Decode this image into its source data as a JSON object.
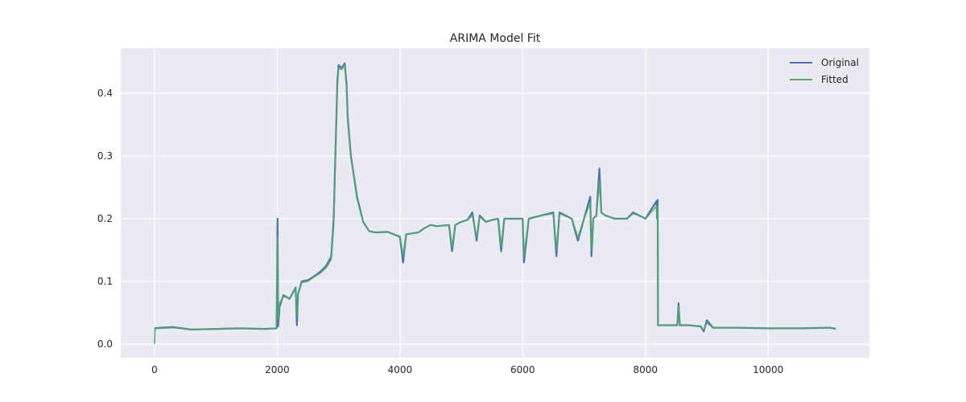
{
  "chart_data": {
    "type": "line",
    "title": "ARIMA Model Fit",
    "xlabel": "",
    "ylabel": "",
    "xlim": [
      -550,
      11650
    ],
    "ylim": [
      -0.022,
      0.472
    ],
    "x_ticks": [
      0,
      2000,
      4000,
      6000,
      8000,
      10000
    ],
    "x_tick_labels": [
      "0",
      "2000",
      "4000",
      "6000",
      "8000",
      "10000"
    ],
    "y_ticks": [
      0.0,
      0.1,
      0.2,
      0.3,
      0.4
    ],
    "y_tick_labels": [
      "0.0",
      "0.1",
      "0.2",
      "0.3",
      "0.4"
    ],
    "grid": true,
    "legend_position": "top-right",
    "series": [
      {
        "name": "Original",
        "color": "#4c72b0",
        "x": [
          0,
          100,
          300,
          600,
          1000,
          1400,
          1800,
          1990,
          2000,
          2005,
          2015,
          2040,
          2100,
          2200,
          2300,
          2320,
          2340,
          2400,
          2500,
          2600,
          2700,
          2800,
          2880,
          2920,
          2950,
          2980,
          3000,
          3050,
          3100,
          3130,
          3150,
          3200,
          3300,
          3400,
          3500,
          3600,
          3800,
          3900,
          4000,
          4050,
          4100,
          4300,
          4400,
          4500,
          4600,
          4800,
          4850,
          4900,
          5000,
          5100,
          5180,
          5250,
          5300,
          5400,
          5500,
          5600,
          5650,
          5700,
          5900,
          6000,
          6020,
          6100,
          6300,
          6500,
          6550,
          6600,
          6800,
          6900,
          7000,
          7100,
          7120,
          7150,
          7200,
          7250,
          7280,
          7350,
          7500,
          7700,
          7800,
          7900,
          8000,
          8180,
          8190,
          8200,
          8205,
          8220,
          8400,
          8520,
          8540,
          8560,
          8700,
          8900,
          8950,
          9000,
          9100,
          9500,
          10000,
          10500,
          11000,
          11100
        ],
        "y": [
          0.025,
          0.026,
          0.027,
          0.023,
          0.024,
          0.025,
          0.024,
          0.025,
          0.135,
          0.2,
          0.028,
          0.06,
          0.078,
          0.072,
          0.09,
          0.03,
          0.08,
          0.1,
          0.102,
          0.108,
          0.115,
          0.125,
          0.14,
          0.2,
          0.31,
          0.42,
          0.445,
          0.44,
          0.448,
          0.415,
          0.36,
          0.3,
          0.235,
          0.195,
          0.18,
          0.178,
          0.179,
          0.175,
          0.171,
          0.13,
          0.175,
          0.178,
          0.185,
          0.19,
          0.188,
          0.19,
          0.148,
          0.19,
          0.195,
          0.198,
          0.21,
          0.165,
          0.205,
          0.195,
          0.198,
          0.2,
          0.148,
          0.2,
          0.2,
          0.2,
          0.13,
          0.2,
          0.205,
          0.21,
          0.14,
          0.21,
          0.2,
          0.165,
          0.2,
          0.235,
          0.14,
          0.2,
          0.205,
          0.28,
          0.21,
          0.205,
          0.2,
          0.2,
          0.21,
          0.205,
          0.2,
          0.228,
          0.2,
          0.23,
          0.03,
          0.03,
          0.03,
          0.03,
          0.065,
          0.03,
          0.03,
          0.028,
          0.02,
          0.038,
          0.026,
          0.026,
          0.025,
          0.025,
          0.026,
          0.024
        ]
      },
      {
        "name": "Fitted",
        "color": "#55a868",
        "x": [
          0,
          10,
          100,
          300,
          600,
          1000,
          1400,
          1800,
          1990,
          2000,
          2005,
          2015,
          2040,
          2100,
          2200,
          2300,
          2320,
          2340,
          2400,
          2500,
          2600,
          2700,
          2800,
          2880,
          2920,
          2950,
          2980,
          3000,
          3050,
          3100,
          3130,
          3150,
          3200,
          3300,
          3400,
          3500,
          3600,
          3800,
          3900,
          4000,
          4050,
          4100,
          4300,
          4400,
          4500,
          4600,
          4800,
          4850,
          4900,
          5000,
          5100,
          5180,
          5250,
          5300,
          5400,
          5500,
          5600,
          5650,
          5700,
          5900,
          6000,
          6020,
          6100,
          6300,
          6500,
          6550,
          6600,
          6800,
          6900,
          7000,
          7100,
          7120,
          7150,
          7200,
          7250,
          7280,
          7350,
          7500,
          7700,
          7800,
          7900,
          8000,
          8180,
          8190,
          8200,
          8205,
          8220,
          8400,
          8520,
          8540,
          8560,
          8700,
          8900,
          8950,
          9000,
          9100,
          9500,
          10000,
          10500,
          11000,
          11100
        ],
        "y": [
          0.0,
          0.025,
          0.025,
          0.026,
          0.023,
          0.024,
          0.025,
          0.024,
          0.025,
          0.12,
          0.17,
          0.04,
          0.065,
          0.076,
          0.073,
          0.088,
          0.045,
          0.08,
          0.098,
          0.1,
          0.107,
          0.113,
          0.122,
          0.135,
          0.19,
          0.3,
          0.41,
          0.44,
          0.438,
          0.446,
          0.41,
          0.355,
          0.298,
          0.232,
          0.195,
          0.18,
          0.178,
          0.179,
          0.175,
          0.172,
          0.14,
          0.175,
          0.178,
          0.185,
          0.19,
          0.188,
          0.19,
          0.155,
          0.19,
          0.195,
          0.198,
          0.205,
          0.17,
          0.203,
          0.195,
          0.198,
          0.2,
          0.155,
          0.2,
          0.2,
          0.2,
          0.14,
          0.2,
          0.205,
          0.208,
          0.15,
          0.208,
          0.2,
          0.17,
          0.2,
          0.225,
          0.15,
          0.2,
          0.205,
          0.26,
          0.21,
          0.205,
          0.2,
          0.2,
          0.208,
          0.205,
          0.2,
          0.22,
          0.2,
          0.22,
          0.032,
          0.03,
          0.03,
          0.03,
          0.06,
          0.03,
          0.03,
          0.028,
          0.022,
          0.034,
          0.026,
          0.026,
          0.025,
          0.025,
          0.026,
          0.025
        ]
      }
    ]
  }
}
